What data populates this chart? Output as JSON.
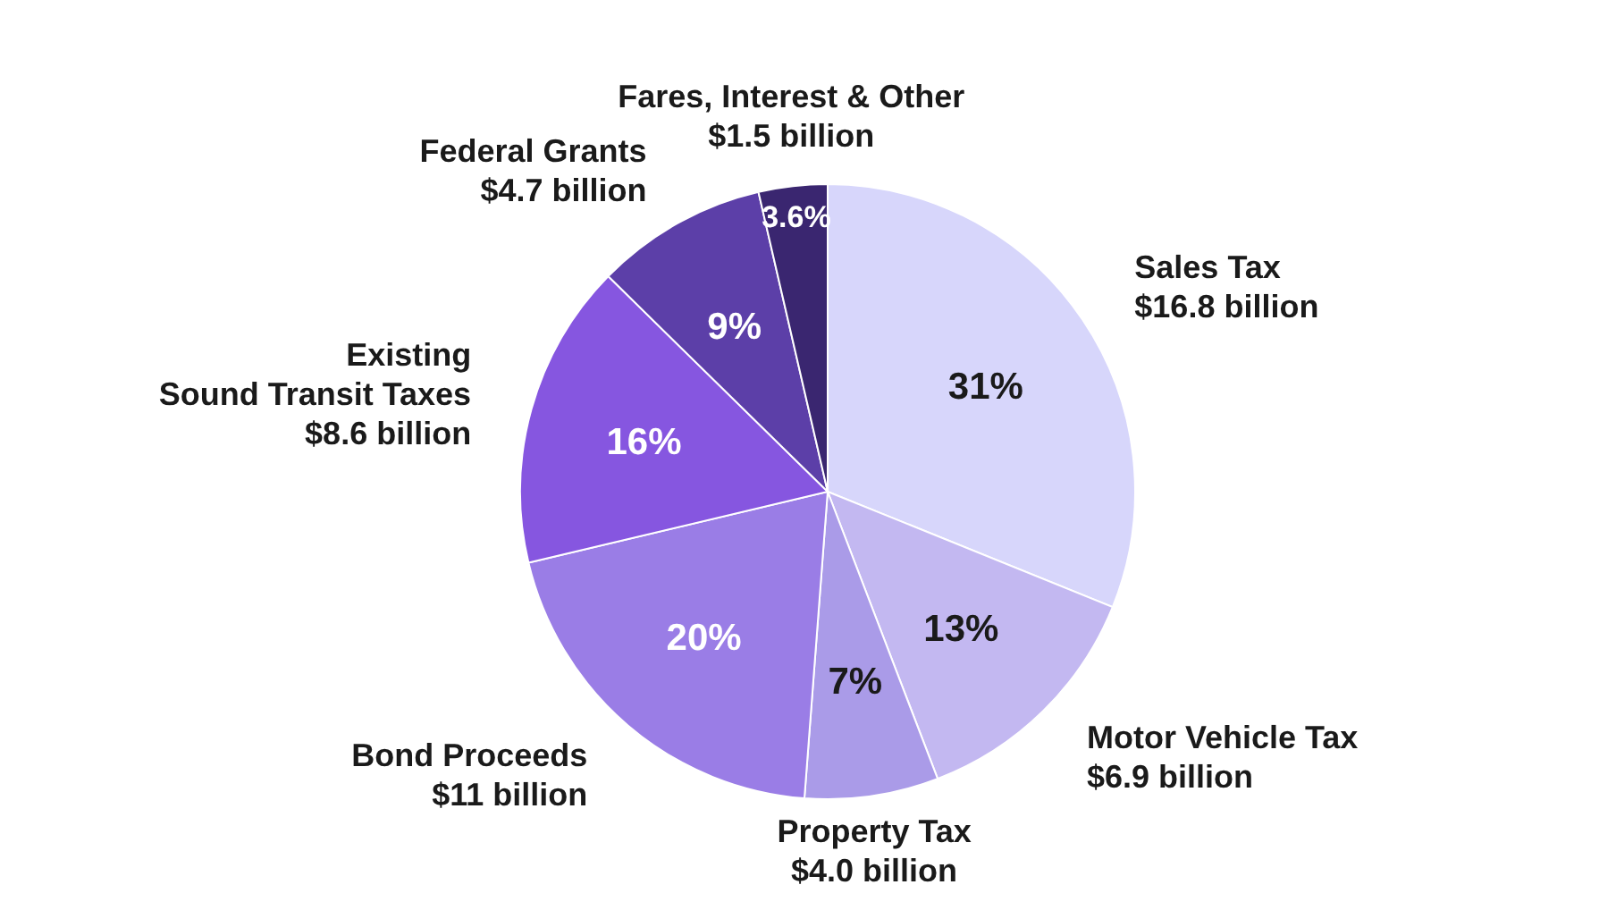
{
  "chart_data": {
    "type": "pie",
    "categories": [
      "Sales Tax\n$16.8 billion",
      "Motor Vehicle Tax\n$6.9 billion",
      "Property Tax\n$4.0 billion",
      "Bond Proceeds\n$11 billion",
      "Existing\nSound Transit Taxes\n$8.6 billion",
      "Federal Grants\n$4.7 billion",
      "Fares, Interest & Other\n$1.5 billion"
    ],
    "values": [
      31,
      13,
      7,
      20,
      16,
      9,
      3.6
    ],
    "value_labels": [
      "31%",
      "13%",
      "7%",
      "20%",
      "16%",
      "9%",
      "3.6%"
    ],
    "colors": [
      "#d7d6fb",
      "#c3b8f1",
      "#aa9be8",
      "#9a7de6",
      "#8656e0",
      "#5c3fa8",
      "#3a2670"
    ]
  }
}
